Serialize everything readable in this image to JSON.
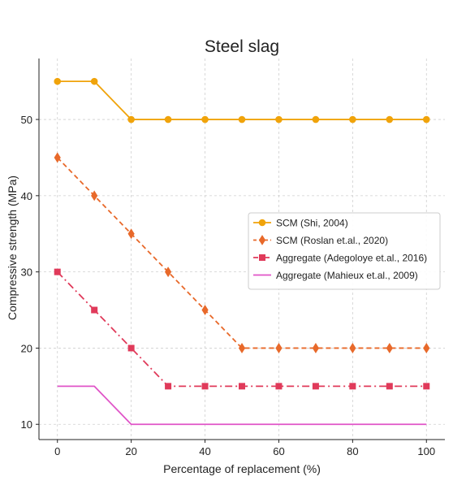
{
  "chart_data": {
    "type": "line",
    "title": "Steel slag",
    "xlabel": "Percentage of replacement (%)",
    "ylabel": "Compressive strength (MPa)",
    "xlim": [
      -5,
      105
    ],
    "ylim": [
      8,
      58
    ],
    "xticks": [
      0,
      20,
      40,
      60,
      80,
      100
    ],
    "yticks": [
      10,
      20,
      30,
      40,
      50
    ],
    "grid": true,
    "legend_position": "center-right",
    "series": [
      {
        "name": "SCM (Shi, 2004)",
        "color": "#f0a30a",
        "line_style": "solid",
        "marker": "circle",
        "x": [
          0,
          10,
          20,
          30,
          40,
          50,
          60,
          70,
          80,
          90,
          100
        ],
        "y": [
          55,
          55,
          50,
          50,
          50,
          50,
          50,
          50,
          50,
          50,
          50
        ]
      },
      {
        "name": "SCM (Roslan et.al., 2020)",
        "color": "#e8692a",
        "line_style": "dashed",
        "marker": "diamond",
        "x": [
          0,
          10,
          20,
          30,
          40,
          50,
          60,
          70,
          80,
          90,
          100
        ],
        "y": [
          45,
          40,
          35,
          30,
          25,
          20,
          20,
          20,
          20,
          20,
          20
        ]
      },
      {
        "name": "Aggregate (Adegoloye et.al., 2016)",
        "color": "#e03a5a",
        "line_style": "dashdot",
        "marker": "square",
        "x": [
          0,
          10,
          20,
          30,
          40,
          50,
          60,
          70,
          80,
          90,
          100
        ],
        "y": [
          30,
          25,
          20,
          15,
          15,
          15,
          15,
          15,
          15,
          15,
          15
        ]
      },
      {
        "name": "Aggregate (Mahieux et.al., 2009)",
        "color": "#e055c8",
        "line_style": "solid",
        "marker": "none",
        "x": [
          0,
          10,
          20,
          30,
          40,
          50,
          60,
          70,
          80,
          90,
          100
        ],
        "y": [
          15,
          15,
          10,
          10,
          10,
          10,
          10,
          10,
          10,
          10,
          10
        ]
      }
    ]
  }
}
